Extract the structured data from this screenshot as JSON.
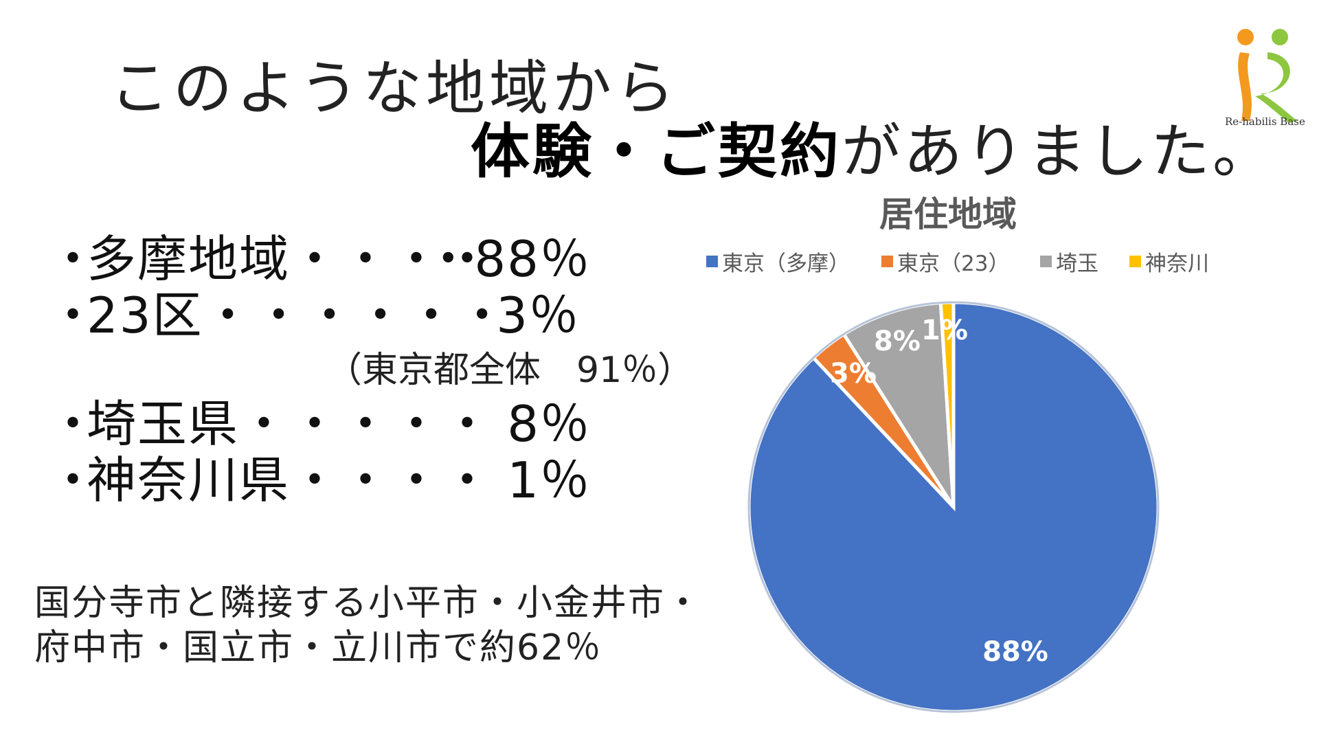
{
  "title": {
    "line1": "このような地域から",
    "line2_bold": "体験・ご契約",
    "line2_rest": "がありました。"
  },
  "summary": {
    "bullet": "・",
    "rows": [
      {
        "label": "多摩地域・・・・",
        "value": "・88％"
      },
      {
        "label": "23区・・・・・・",
        "value": "3％"
      },
      {
        "label": "埼玉県・・・・・",
        "value": "8％"
      },
      {
        "label": "神奈川県・・・・",
        "value": "1％"
      }
    ],
    "note": "（東京都全体　91％）"
  },
  "description": {
    "line1": "国分寺市と隣接する小平市・小金井市・",
    "line2": "府中市・国立市・立川市で約62％"
  },
  "logo": {
    "text": "Re-habilis Base"
  },
  "chart_data": {
    "type": "pie",
    "title": "居住地域",
    "legend_position": "top",
    "categories": [
      "東京（多摩）",
      "東京（23）",
      "埼玉",
      "神奈川"
    ],
    "values": [
      88,
      3,
      8,
      1
    ],
    "data_labels": [
      "88%",
      "3%",
      "8%",
      "1%"
    ],
    "colors": [
      "#4472C4",
      "#ED7D31",
      "#A5A5A5",
      "#FFC000"
    ],
    "start_angle_deg": 0,
    "direction": "clockwise"
  }
}
